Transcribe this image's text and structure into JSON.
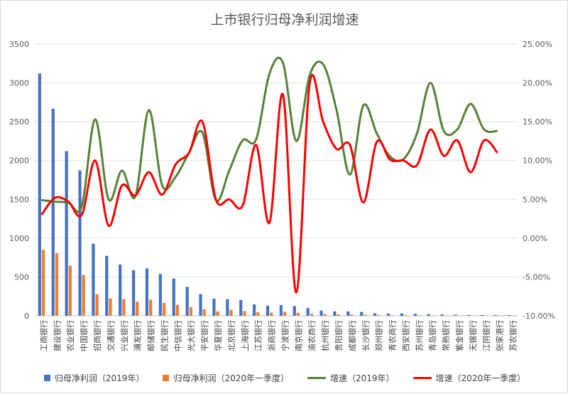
{
  "chart_data": {
    "type": "bar+line",
    "title": "上市银行归母净利润增速",
    "categories": [
      "工商银行",
      "建设银行",
      "农业银行",
      "中国银行",
      "招商银行",
      "交通银行",
      "兴业银行",
      "浦发银行",
      "邮储银行",
      "民生银行",
      "中信银行",
      "光大银行",
      "平安银行",
      "华夏银行",
      "北京银行",
      "上海银行",
      "江苏银行",
      "浙商银行",
      "宁波银行",
      "南京银行",
      "渝农商行",
      "杭州银行",
      "贵阳银行",
      "成都银行",
      "长沙银行",
      "郑州银行",
      "青农商行",
      "西安银行",
      "苏州银行",
      "青岛银行",
      "常熟银行",
      "紫金银行",
      "无锡银行",
      "江阴银行",
      "张家港行",
      "苏农银行"
    ],
    "left_axis": {
      "min": 0,
      "max": 3500,
      "ticks": [
        "0",
        "500",
        "1000",
        "1500",
        "2000",
        "2500",
        "3000",
        "3500"
      ]
    },
    "right_axis": {
      "min": -10,
      "max": 25,
      "ticks": [
        "-10.00%",
        "-5.00%",
        "0.00%",
        "5.00%",
        "10.00%",
        "15.00%",
        "20.00%",
        "25.00%"
      ]
    },
    "series": [
      {
        "name": "归母净利润（2019年）",
        "kind": "bar",
        "axis": "left",
        "color": "#4472c4",
        "values": [
          3122,
          2667,
          2121,
          1874,
          929,
          772,
          659,
          589,
          610,
          538,
          480,
          373,
          280,
          220,
          214,
          204,
          146,
          130,
          137,
          125,
          99,
          66,
          57,
          56,
          49,
          33,
          30,
          30,
          26,
          21,
          18,
          13,
          10,
          9,
          9,
          9
        ]
      },
      {
        "name": "归母净利润（2020年一季度）",
        "kind": "bar",
        "axis": "right_hidden",
        "color": "#ed7d31",
        "values": [
          850,
          808,
          645,
          527,
          277,
          223,
          215,
          180,
          207,
          166,
          142,
          110,
          85,
          55,
          75,
          60,
          45,
          40,
          50,
          38,
          25,
          20,
          17,
          16,
          14,
          10,
          8,
          8,
          7,
          6,
          5,
          4,
          3,
          3,
          3,
          3
        ]
      },
      {
        "name": "增速（2019年）",
        "kind": "line",
        "axis": "right",
        "color": "#548235",
        "values": [
          4.9,
          4.7,
          4.6,
          4.1,
          15.3,
          5.0,
          8.7,
          5.4,
          16.5,
          6.8,
          7.9,
          11.0,
          13.6,
          4.9,
          8.7,
          12.6,
          12.7,
          21.2,
          22.6,
          12.5,
          21.0,
          22.4,
          16.5,
          8.2,
          17.1,
          13.5,
          10.5,
          10.2,
          13.5,
          20.0,
          13.8,
          14.0,
          17.3,
          14.0,
          13.8,
          null
        ],
        "values_note": ""
      },
      {
        "name": "增速（2020年一季度）",
        "kind": "line",
        "axis": "right",
        "color": "#ff0000",
        "values": [
          3.0,
          5.2,
          4.7,
          3.0,
          10.0,
          1.6,
          6.8,
          5.5,
          8.5,
          5.6,
          9.5,
          11.0,
          15.0,
          5.0,
          5.0,
          4.2,
          12.0,
          2.0,
          18.5,
          -7.0,
          20.0,
          15.0,
          11.5,
          12.0,
          4.6,
          12.4,
          10.1,
          10.0,
          9.4,
          14.0,
          10.6,
          12.6,
          8.5,
          12.6,
          11.0,
          null
        ]
      }
    ],
    "legend_position": "bottom",
    "grid": true
  },
  "legend": {
    "bar2019": "归母净利润（2019年）",
    "bar2020": "归母净利润（2020年一季度）",
    "line2019": "增速（2019年）",
    "line2020": "增速（2020年一季度）"
  }
}
